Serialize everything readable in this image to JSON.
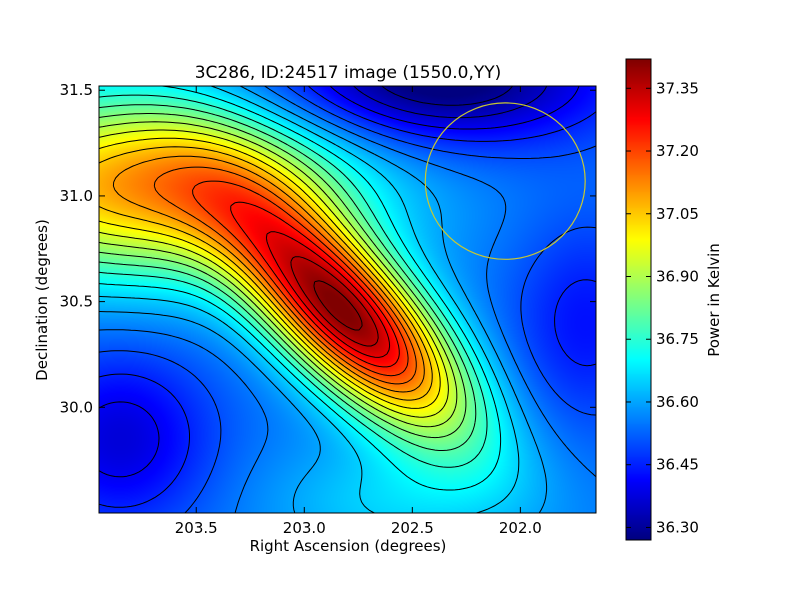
{
  "chart_data": {
    "type": "heatmap",
    "title": "3C286, ID:24517 image (1550.0,YY)",
    "xlabel": "Right Ascension (degrees)",
    "ylabel": "Declination (degrees)",
    "colorbar_label": "Power in Kelvin",
    "xlim": [
      203.95,
      201.65
    ],
    "ylim": [
      29.5,
      31.52
    ],
    "xticks": [
      203.5,
      203.0,
      202.5,
      202.0
    ],
    "xtick_labels": [
      "203.5",
      "203.0",
      "202.5",
      "202.0"
    ],
    "yticks": [
      30.0,
      30.5,
      31.0,
      31.5
    ],
    "ytick_labels": [
      "30.0",
      "30.5",
      "31.0",
      "31.5"
    ],
    "colorbar_range": [
      36.27,
      37.42
    ],
    "colorbar_ticks": [
      36.3,
      36.45,
      36.6,
      36.75,
      36.9,
      37.05,
      37.2,
      37.35
    ],
    "colorbar_tick_labels": [
      "36.30",
      "36.45",
      "36.60",
      "36.75",
      "36.90",
      "37.05",
      "37.20",
      "37.35"
    ],
    "colormap": "jet",
    "contour_color": "#000000",
    "peak": {
      "ra": 202.8,
      "dec": 30.43,
      "value": 37.4
    },
    "minimum_region": {
      "ra": 202.4,
      "dec": 31.5,
      "value": 36.28
    },
    "beam_circle": {
      "center_ra": 202.07,
      "center_dec": 31.07,
      "radius_deg": 0.37,
      "color": "#c8c832"
    }
  }
}
